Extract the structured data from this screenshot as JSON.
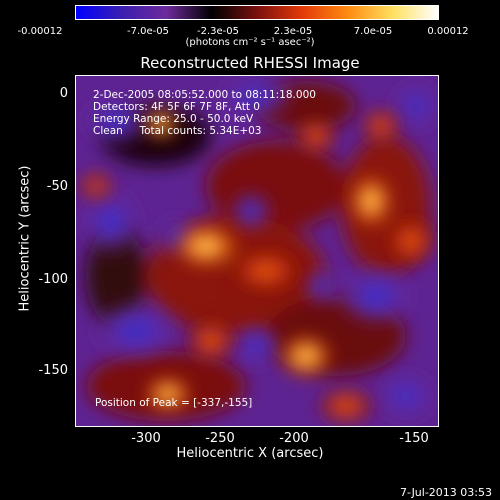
{
  "colorbar": {
    "ticks": [
      "-0.00012",
      "-7.0e-05",
      "-2.3e-05",
      "2.3e-05",
      "7.0e-05",
      "0.00012"
    ],
    "unit_label": "(photons cm⁻² s⁻¹ asec⁻²)",
    "colors": [
      "#0000ff",
      "#3b1fb0",
      "#6d2a9b",
      "#000000",
      "#7a1010",
      "#e23a08",
      "#ff8a10",
      "#ffe060",
      "#ffffff"
    ]
  },
  "title": "Reconstructed RHESSI Image",
  "overlay": {
    "line1": "2-Dec-2005 08:05:52.000 to 08:11:18.000",
    "line2": "Detectors: 4F 5F 6F 7F 8F, Att 0",
    "line3": "Energy Range: 25.0 - 50.0 keV",
    "line4": "Clean     Total counts: 5.34E+03",
    "peak": "Position of Peak = [-337,-155]"
  },
  "axes": {
    "xlabel": "Heliocentric X (arcsec)",
    "ylabel": "Heliocentric Y (arcsec)",
    "xticks": [
      "-300",
      "-250",
      "-200",
      "-150"
    ],
    "yticks": [
      "0",
      "-50",
      "-100",
      "-150"
    ]
  },
  "timestamp": "7-Jul-2013 03:53"
}
